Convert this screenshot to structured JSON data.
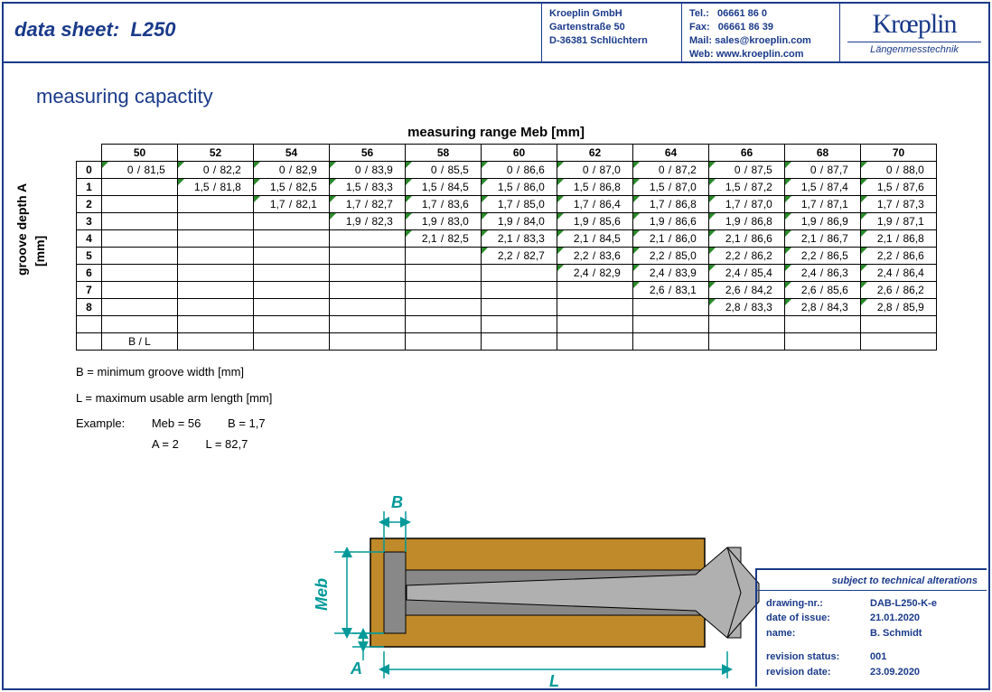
{
  "header": {
    "title_prefix": "data sheet:",
    "title_model": "L250",
    "company": "Kroeplin GmbH",
    "street": "Gartenstraße 50",
    "city": "D-36381 Schlüchtern",
    "tel_label": "Tel.:",
    "tel": "06661 86 0",
    "fax_label": "Fax:",
    "fax": "06661 86 39",
    "mail_label": "Mail:",
    "mail": "sales@kroeplin.com",
    "web_label": "Web:",
    "web": "www.kroeplin.com",
    "logo": "Krœplin",
    "logo_sub": "Längenmesstechnik"
  },
  "section_title": "measuring capactity",
  "table": {
    "title": "measuring range Meb [mm]",
    "y_label": "groove depth A",
    "y_unit": "[mm]",
    "columns": [
      "50",
      "52",
      "54",
      "56",
      "58",
      "60",
      "62",
      "64",
      "66",
      "68",
      "70"
    ],
    "row_headers": [
      "0",
      "1",
      "2",
      "3",
      "4",
      "5",
      "6",
      "7",
      "8"
    ],
    "cells": [
      [
        [
          "0",
          "81,5"
        ],
        [
          "0",
          "82,2"
        ],
        [
          "0",
          "82,9"
        ],
        [
          "0",
          "83,9"
        ],
        [
          "0",
          "85,5"
        ],
        [
          "0",
          "86,6"
        ],
        [
          "0",
          "87,0"
        ],
        [
          "0",
          "87,2"
        ],
        [
          "0",
          "87,5"
        ],
        [
          "0",
          "87,7"
        ],
        [
          "0",
          "88,0"
        ]
      ],
      [
        null,
        [
          "1,5",
          "81,8"
        ],
        [
          "1,5",
          "82,5"
        ],
        [
          "1,5",
          "83,3"
        ],
        [
          "1,5",
          "84,5"
        ],
        [
          "1,5",
          "86,0"
        ],
        [
          "1,5",
          "86,8"
        ],
        [
          "1,5",
          "87,0"
        ],
        [
          "1,5",
          "87,2"
        ],
        [
          "1,5",
          "87,4"
        ],
        [
          "1,5",
          "87,6"
        ]
      ],
      [
        null,
        null,
        [
          "1,7",
          "82,1"
        ],
        [
          "1,7",
          "82,7"
        ],
        [
          "1,7",
          "83,6"
        ],
        [
          "1,7",
          "85,0"
        ],
        [
          "1,7",
          "86,4"
        ],
        [
          "1,7",
          "86,8"
        ],
        [
          "1,7",
          "87,0"
        ],
        [
          "1,7",
          "87,1"
        ],
        [
          "1,7",
          "87,3"
        ]
      ],
      [
        null,
        null,
        null,
        [
          "1,9",
          "82,3"
        ],
        [
          "1,9",
          "83,0"
        ],
        [
          "1,9",
          "84,0"
        ],
        [
          "1,9",
          "85,6"
        ],
        [
          "1,9",
          "86,6"
        ],
        [
          "1,9",
          "86,8"
        ],
        [
          "1,9",
          "86,9"
        ],
        [
          "1,9",
          "87,1"
        ]
      ],
      [
        null,
        null,
        null,
        null,
        [
          "2,1",
          "82,5"
        ],
        [
          "2,1",
          "83,3"
        ],
        [
          "2,1",
          "84,5"
        ],
        [
          "2,1",
          "86,0"
        ],
        [
          "2,1",
          "86,6"
        ],
        [
          "2,1",
          "86,7"
        ],
        [
          "2,1",
          "86,8"
        ]
      ],
      [
        null,
        null,
        null,
        null,
        null,
        [
          "2,2",
          "82,7"
        ],
        [
          "2,2",
          "83,6"
        ],
        [
          "2,2",
          "85,0"
        ],
        [
          "2,2",
          "86,2"
        ],
        [
          "2,2",
          "86,5"
        ],
        [
          "2,2",
          "86,6"
        ]
      ],
      [
        null,
        null,
        null,
        null,
        null,
        null,
        [
          "2,4",
          "82,9"
        ],
        [
          "2,4",
          "83,9"
        ],
        [
          "2,4",
          "85,4"
        ],
        [
          "2,4",
          "86,3"
        ],
        [
          "2,4",
          "86,4"
        ]
      ],
      [
        null,
        null,
        null,
        null,
        null,
        null,
        null,
        [
          "2,6",
          "83,1"
        ],
        [
          "2,6",
          "84,2"
        ],
        [
          "2,6",
          "85,6"
        ],
        [
          "2,6",
          "86,2"
        ]
      ],
      [
        null,
        null,
        null,
        null,
        null,
        null,
        null,
        null,
        [
          "2,8",
          "83,3"
        ],
        [
          "2,8",
          "84,3"
        ],
        [
          "2,8",
          "85,9"
        ]
      ]
    ],
    "bl_label": "B / L"
  },
  "notes": {
    "b": "B = minimum groove width [mm]",
    "l": "L = maximum usable arm length [mm]"
  },
  "example": {
    "label": "Example:",
    "meb": "Meb = 56",
    "bv": "B = 1,7",
    "av": "A = 2",
    "lv": "L = 82,7"
  },
  "diagram": {
    "labels": {
      "B": "B",
      "Meb": "Meb",
      "A": "A",
      "L": "L"
    },
    "colors": {
      "dim": "#009999",
      "block_fill": "#c08a2a",
      "block_stroke": "#000000",
      "probe_fill": "#b0b0b0"
    }
  },
  "footer": {
    "alterations": "subject to technical alterations",
    "drawing_nr_k": "drawing-nr.:",
    "drawing_nr_v": "DAB-L250-K-e",
    "date_issue_k": "date of issue:",
    "date_issue_v": "21.01.2020",
    "name_k": "name:",
    "name_v": "B. Schmidt",
    "rev_status_k": "revision status:",
    "rev_status_v": "001",
    "rev_date_k": "revision date:",
    "rev_date_v": "23.09.2020"
  }
}
